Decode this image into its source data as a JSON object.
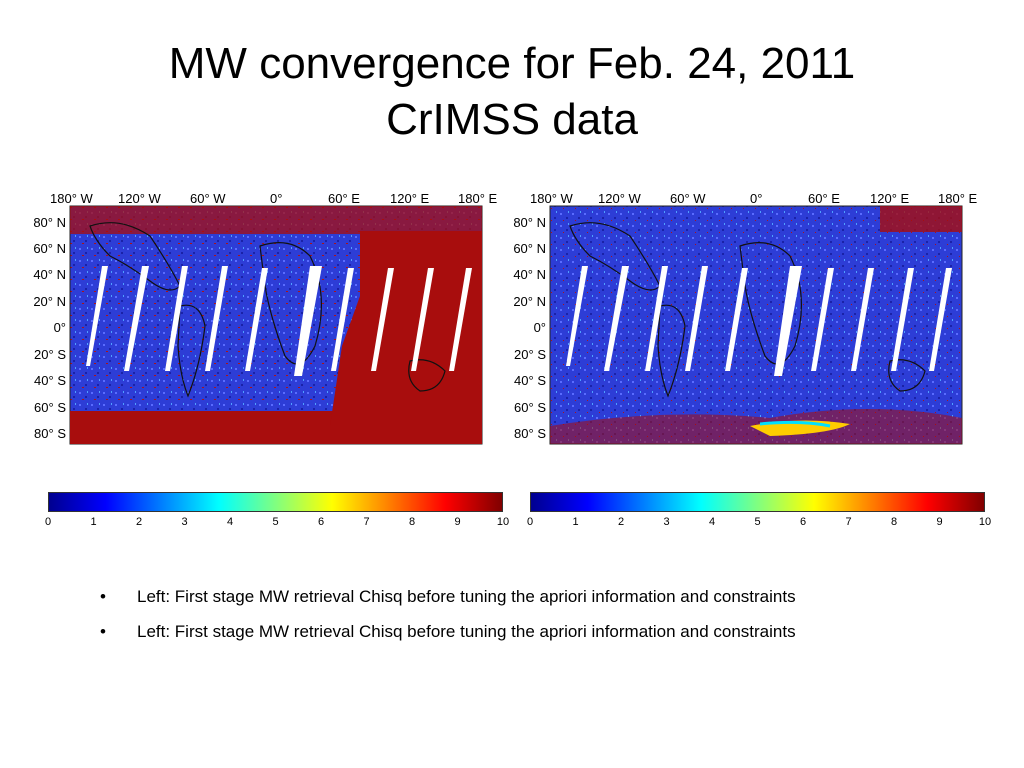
{
  "title": {
    "line1": "MW convergence for Feb. 24, 2011",
    "line2": "CrIMSS data"
  },
  "maps": {
    "lon_labels": [
      "180° W",
      "120° W",
      "60° W",
      "0°",
      "60° E",
      "120° E",
      "180° E"
    ],
    "lat_labels": [
      "80° N",
      "60° N",
      "40° N",
      "20° N",
      "0°",
      "20° S",
      "40° S",
      "60° S",
      "80° S"
    ]
  },
  "colorbar": {
    "ticks": [
      "0",
      "1",
      "2",
      "3",
      "4",
      "5",
      "6",
      "7",
      "8",
      "9",
      "10"
    ],
    "colors": [
      "#00008f",
      "#0000ff",
      "#0080ff",
      "#00ffff",
      "#80ff80",
      "#ffff00",
      "#ff8000",
      "#ff0000",
      "#800000"
    ]
  },
  "bullets": [
    {
      "marker": "•",
      "text": "Left: First stage MW retrieval Chisq before tuning the apriori information and constraints"
    },
    {
      "marker": "•",
      "text": "Left: First stage MW retrieval Chisq before tuning the apriori information and constraints"
    }
  ],
  "colors": {
    "ocean": "#2d3dd6",
    "land_high": "#a80d0d",
    "swath_gap": "#ffffff"
  }
}
